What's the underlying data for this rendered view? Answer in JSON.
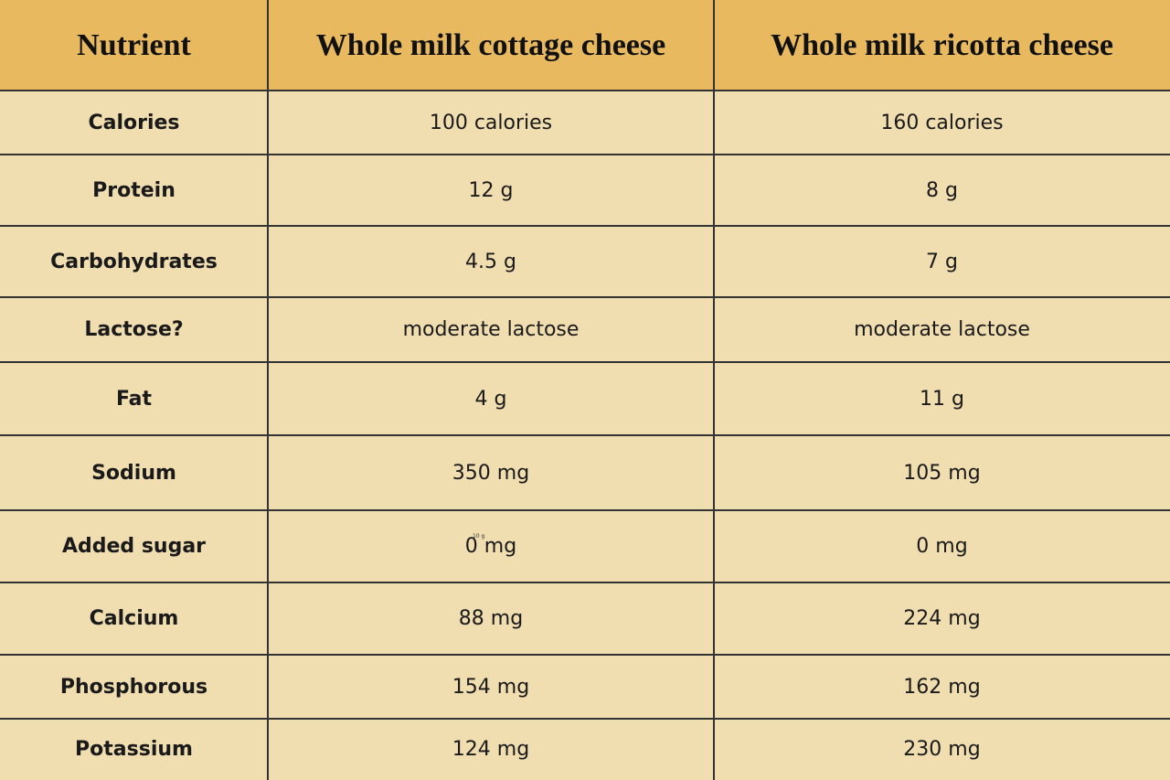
{
  "table": {
    "header": [
      "Nutrient",
      "Whole milk cottage cheese",
      "Whole milk ricotta cheese"
    ],
    "rows": [
      [
        "Calories",
        "100 calories",
        "160 calories"
      ],
      [
        "Protein",
        "12 g",
        "8 g"
      ],
      [
        "Carbohydrates",
        "4.5 g",
        "7 g"
      ],
      [
        "Lactose?",
        "moderate lactose",
        "moderate lactose"
      ],
      [
        "Fat",
        "4 g",
        "11 g"
      ],
      [
        "Sodium",
        "350 mg",
        "105 mg"
      ],
      [
        "Added sugar",
        "0 mg",
        "0 mg"
      ],
      [
        "Calcium",
        "88 mg",
        "224 mg"
      ],
      [
        "Phosphorous",
        "154 mg",
        "162 mg"
      ],
      [
        "Potassium",
        "124 mg",
        "230 mg"
      ]
    ],
    "stray_text": "10 g"
  }
}
